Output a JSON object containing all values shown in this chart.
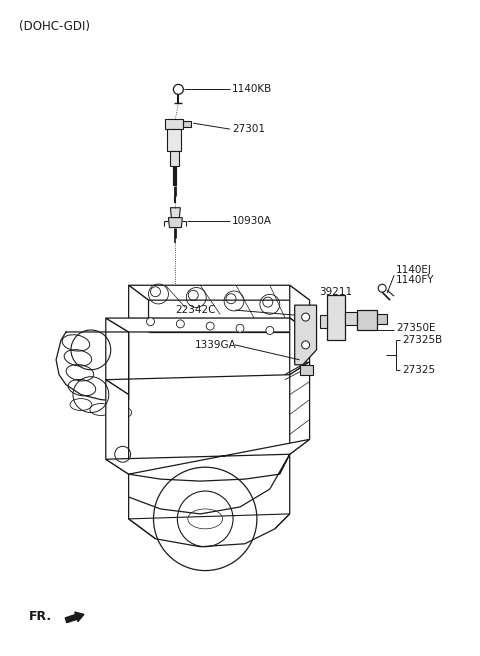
{
  "title": "(DOHC-GDI)",
  "bg_color": "#ffffff",
  "text_color": "#1a1a1a",
  "line_color": "#1a1a1a",
  "font_size_title": 8.5,
  "font_size_labels": 7.5,
  "fr_label": "FR.",
  "label_1140KB": "1140KB",
  "label_27301": "27301",
  "label_10930A": "10930A",
  "label_22342C": "22342C",
  "label_1339GA": "1339GA",
  "label_39211": "39211",
  "label_1140EJ": "1140EJ",
  "label_1140FY": "1140FY",
  "label_27350E": "27350E",
  "label_27325B": "27325B",
  "label_27325": "27325"
}
